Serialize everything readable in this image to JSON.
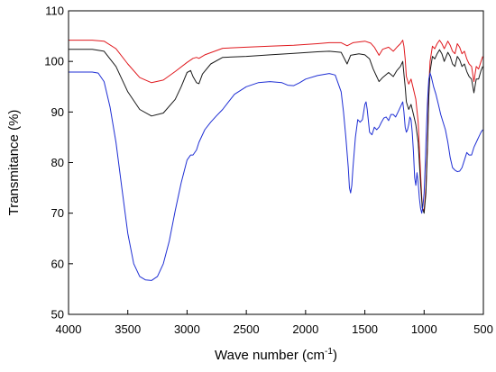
{
  "chart_data": {
    "type": "line",
    "title": "",
    "xlabel": "Wave number (cm",
    "xlabel_sup": "-1",
    "xlabel_suffix": ")",
    "ylabel": "Transmitance (%)",
    "xlim": [
      4000,
      500
    ],
    "ylim": [
      50,
      110
    ],
    "x_reversed": true,
    "xticks": [
      4000,
      3500,
      3000,
      2500,
      2000,
      1500,
      1000,
      500
    ],
    "yticks": [
      50,
      60,
      70,
      80,
      90,
      100,
      110
    ],
    "grid": false,
    "legend": "none",
    "series": [
      {
        "color": "#e0191e",
        "points": [
          [
            4000,
            104.2
          ],
          [
            3800,
            104.2
          ],
          [
            3700,
            104
          ],
          [
            3600,
            102.5
          ],
          [
            3500,
            99.5
          ],
          [
            3400,
            96.8
          ],
          [
            3300,
            95.8
          ],
          [
            3200,
            96.3
          ],
          [
            3100,
            98
          ],
          [
            3000,
            99.8
          ],
          [
            2950,
            100.6
          ],
          [
            2920,
            100.8
          ],
          [
            2900,
            100.6
          ],
          [
            2850,
            101.3
          ],
          [
            2700,
            102.6
          ],
          [
            2500,
            102.8
          ],
          [
            2300,
            103
          ],
          [
            2100,
            103.2
          ],
          [
            1900,
            103.5
          ],
          [
            1800,
            103.7
          ],
          [
            1700,
            103.7
          ],
          [
            1650,
            103.1
          ],
          [
            1600,
            103.7
          ],
          [
            1500,
            104
          ],
          [
            1450,
            103.6
          ],
          [
            1420,
            102.8
          ],
          [
            1380,
            101.2
          ],
          [
            1350,
            102.4
          ],
          [
            1300,
            102.8
          ],
          [
            1260,
            102
          ],
          [
            1230,
            102.8
          ],
          [
            1200,
            103.5
          ],
          [
            1180,
            104.2
          ],
          [
            1170,
            103
          ],
          [
            1160,
            100.5
          ],
          [
            1150,
            97
          ],
          [
            1130,
            95.5
          ],
          [
            1110,
            96.5
          ],
          [
            1090,
            94.5
          ],
          [
            1070,
            92.5
          ],
          [
            1050,
            88
          ],
          [
            1030,
            78
          ],
          [
            1015,
            71
          ],
          [
            1000,
            70.5
          ],
          [
            985,
            75
          ],
          [
            970,
            85
          ],
          [
            960,
            95
          ],
          [
            950,
            100
          ],
          [
            930,
            103
          ],
          [
            910,
            102.5
          ],
          [
            890,
            103.5
          ],
          [
            870,
            104.2
          ],
          [
            850,
            103.5
          ],
          [
            830,
            102.5
          ],
          [
            800,
            104
          ],
          [
            780,
            103.2
          ],
          [
            760,
            102
          ],
          [
            740,
            101.5
          ],
          [
            720,
            103.5
          ],
          [
            700,
            102.8
          ],
          [
            680,
            101.5
          ],
          [
            660,
            102
          ],
          [
            640,
            100.5
          ],
          [
            620,
            99.5
          ],
          [
            600,
            99
          ],
          [
            580,
            96
          ],
          [
            560,
            99
          ],
          [
            540,
            98.5
          ],
          [
            520,
            100
          ],
          [
            505,
            101
          ]
        ]
      },
      {
        "color": "#1a1a1a",
        "points": [
          [
            4000,
            102.4
          ],
          [
            3800,
            102.4
          ],
          [
            3700,
            102
          ],
          [
            3600,
            99
          ],
          [
            3500,
            94
          ],
          [
            3400,
            90.5
          ],
          [
            3300,
            89.2
          ],
          [
            3200,
            89.8
          ],
          [
            3100,
            92.5
          ],
          [
            3050,
            95
          ],
          [
            3000,
            97.8
          ],
          [
            2970,
            98.2
          ],
          [
            2950,
            97
          ],
          [
            2920,
            95.8
          ],
          [
            2900,
            95.6
          ],
          [
            2870,
            97.5
          ],
          [
            2800,
            99.5
          ],
          [
            2700,
            100.8
          ],
          [
            2500,
            101
          ],
          [
            2300,
            101.3
          ],
          [
            2100,
            101.6
          ],
          [
            1900,
            101.9
          ],
          [
            1800,
            102
          ],
          [
            1700,
            101.8
          ],
          [
            1650,
            99.5
          ],
          [
            1620,
            101.2
          ],
          [
            1550,
            101.5
          ],
          [
            1500,
            101.3
          ],
          [
            1460,
            100.5
          ],
          [
            1430,
            98.5
          ],
          [
            1400,
            97
          ],
          [
            1380,
            96
          ],
          [
            1350,
            96.8
          ],
          [
            1300,
            97.8
          ],
          [
            1260,
            97
          ],
          [
            1230,
            98.2
          ],
          [
            1200,
            99
          ],
          [
            1180,
            100
          ],
          [
            1170,
            97.5
          ],
          [
            1160,
            95
          ],
          [
            1150,
            92
          ],
          [
            1130,
            90.5
          ],
          [
            1110,
            91.5
          ],
          [
            1090,
            89.5
          ],
          [
            1070,
            87.5
          ],
          [
            1050,
            84
          ],
          [
            1030,
            76
          ],
          [
            1015,
            71
          ],
          [
            1000,
            70
          ],
          [
            985,
            74
          ],
          [
            970,
            84
          ],
          [
            960,
            93
          ],
          [
            950,
            98
          ],
          [
            930,
            101
          ],
          [
            910,
            100.5
          ],
          [
            890,
            101.5
          ],
          [
            870,
            102.3
          ],
          [
            850,
            101.5
          ],
          [
            830,
            100
          ],
          [
            800,
            101.8
          ],
          [
            780,
            101
          ],
          [
            760,
            99.5
          ],
          [
            740,
            99
          ],
          [
            720,
            101
          ],
          [
            700,
            100.3
          ],
          [
            680,
            99
          ],
          [
            660,
            99.5
          ],
          [
            640,
            98
          ],
          [
            620,
            97
          ],
          [
            600,
            96.5
          ],
          [
            580,
            93.8
          ],
          [
            560,
            96.5
          ],
          [
            540,
            96.5
          ],
          [
            520,
            98.2
          ],
          [
            505,
            99
          ]
        ]
      },
      {
        "color": "#1f2fd4",
        "points": [
          [
            4000,
            97.9
          ],
          [
            3800,
            97.9
          ],
          [
            3750,
            97.7
          ],
          [
            3700,
            96
          ],
          [
            3650,
            91
          ],
          [
            3600,
            84
          ],
          [
            3550,
            75
          ],
          [
            3500,
            66
          ],
          [
            3450,
            60
          ],
          [
            3400,
            57.5
          ],
          [
            3350,
            56.8
          ],
          [
            3300,
            56.7
          ],
          [
            3250,
            57.5
          ],
          [
            3200,
            60
          ],
          [
            3150,
            64.5
          ],
          [
            3100,
            70.5
          ],
          [
            3050,
            76
          ],
          [
            3000,
            80.5
          ],
          [
            2970,
            81.5
          ],
          [
            2950,
            81.5
          ],
          [
            2920,
            82.5
          ],
          [
            2900,
            84
          ],
          [
            2850,
            86.5
          ],
          [
            2800,
            88
          ],
          [
            2750,
            89.3
          ],
          [
            2700,
            90.5
          ],
          [
            2650,
            92
          ],
          [
            2600,
            93.5
          ],
          [
            2500,
            95
          ],
          [
            2400,
            95.8
          ],
          [
            2300,
            96
          ],
          [
            2200,
            95.8
          ],
          [
            2150,
            95.3
          ],
          [
            2100,
            95.2
          ],
          [
            2050,
            95.8
          ],
          [
            2000,
            96.5
          ],
          [
            1900,
            97.2
          ],
          [
            1800,
            97.6
          ],
          [
            1750,
            97.3
          ],
          [
            1700,
            94
          ],
          [
            1680,
            90
          ],
          [
            1660,
            85
          ],
          [
            1640,
            79
          ],
          [
            1630,
            75
          ],
          [
            1620,
            74
          ],
          [
            1610,
            75.5
          ],
          [
            1600,
            79
          ],
          [
            1580,
            85
          ],
          [
            1560,
            88.5
          ],
          [
            1540,
            88
          ],
          [
            1520,
            88.5
          ],
          [
            1500,
            91.5
          ],
          [
            1490,
            92
          ],
          [
            1480,
            90.5
          ],
          [
            1460,
            86
          ],
          [
            1440,
            85.5
          ],
          [
            1420,
            87
          ],
          [
            1400,
            86.5
          ],
          [
            1380,
            87
          ],
          [
            1360,
            88
          ],
          [
            1340,
            88.8
          ],
          [
            1320,
            89
          ],
          [
            1300,
            88.3
          ],
          [
            1280,
            89.5
          ],
          [
            1260,
            89.5
          ],
          [
            1240,
            89
          ],
          [
            1220,
            90
          ],
          [
            1200,
            91
          ],
          [
            1180,
            92
          ],
          [
            1170,
            90
          ],
          [
            1160,
            87
          ],
          [
            1150,
            86
          ],
          [
            1140,
            86.5
          ],
          [
            1130,
            87.5
          ],
          [
            1120,
            89
          ],
          [
            1110,
            88.5
          ],
          [
            1100,
            86
          ],
          [
            1090,
            82
          ],
          [
            1080,
            77
          ],
          [
            1070,
            75.5
          ],
          [
            1060,
            78
          ],
          [
            1050,
            76
          ],
          [
            1040,
            73
          ],
          [
            1030,
            71
          ],
          [
            1020,
            70
          ],
          [
            1010,
            71.5
          ],
          [
            1000,
            74
          ],
          [
            990,
            80
          ],
          [
            980,
            87
          ],
          [
            970,
            92.5
          ],
          [
            960,
            96.5
          ],
          [
            950,
            97.7
          ],
          [
            940,
            97
          ],
          [
            920,
            95
          ],
          [
            900,
            93.5
          ],
          [
            880,
            91.5
          ],
          [
            860,
            89.5
          ],
          [
            840,
            88
          ],
          [
            820,
            86.5
          ],
          [
            800,
            84
          ],
          [
            780,
            81
          ],
          [
            760,
            79
          ],
          [
            740,
            78.5
          ],
          [
            720,
            78.2
          ],
          [
            700,
            78.3
          ],
          [
            680,
            79
          ],
          [
            660,
            80.5
          ],
          [
            640,
            82
          ],
          [
            620,
            81.5
          ],
          [
            600,
            81.5
          ],
          [
            580,
            83
          ],
          [
            560,
            84
          ],
          [
            540,
            85
          ],
          [
            520,
            86
          ],
          [
            505,
            86.5
          ]
        ]
      }
    ]
  }
}
